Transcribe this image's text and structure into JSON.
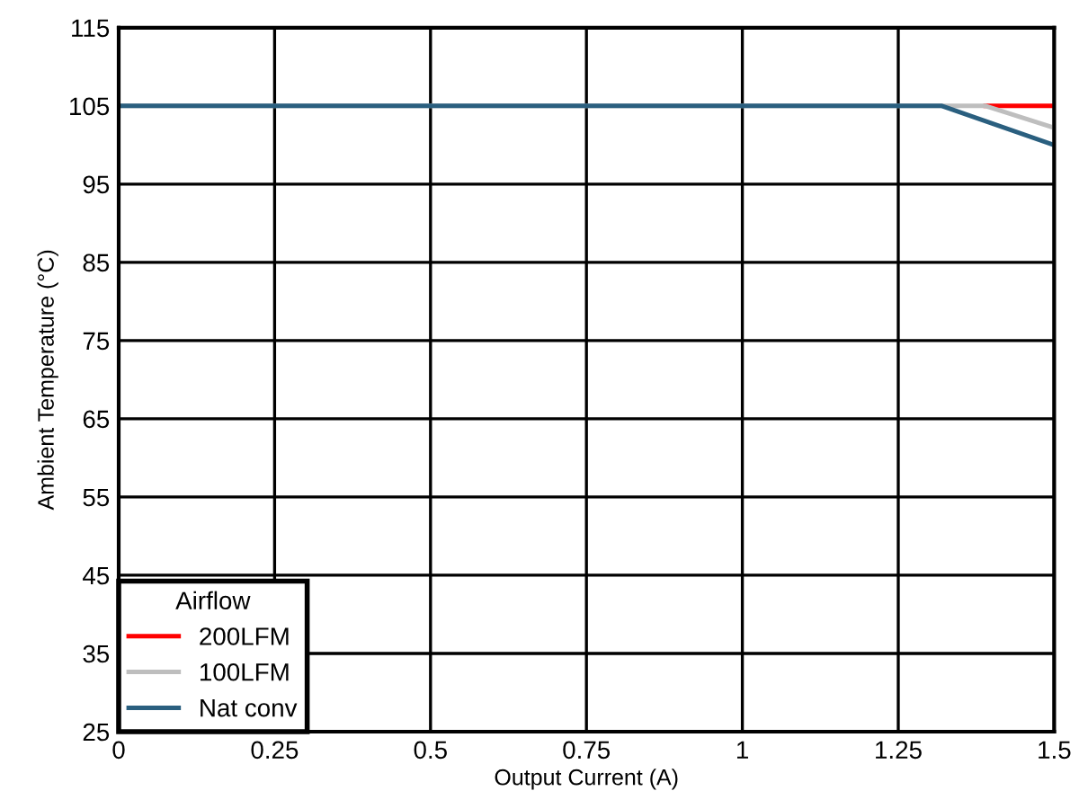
{
  "chart_data": {
    "type": "line",
    "xlabel": "Output Current (A)",
    "ylabel": "Ambient Temperature (°C)",
    "legend_title": "Airflow",
    "legend": "bottom left",
    "grid": true,
    "xlim": [
      0,
      1.5
    ],
    "xticks": [
      0,
      0.25,
      0.5,
      0.75,
      1,
      1.25,
      1.5
    ],
    "ylim": [
      25,
      115
    ],
    "yticks": [
      25,
      35,
      45,
      55,
      65,
      75,
      85,
      95,
      105,
      115
    ],
    "series": [
      {
        "name": "200LFM",
        "color": "#ff0000",
        "x": [
          1.39,
          1.5
        ],
        "values": [
          105,
          105
        ]
      },
      {
        "name": "100LFM",
        "color": "#bebebe",
        "x": [
          0,
          1.39,
          1.5
        ],
        "values": [
          105,
          105,
          102.2
        ]
      },
      {
        "name": "Nat conv",
        "color": "#2a5f7f",
        "x": [
          0,
          1.32,
          1.5
        ],
        "values": [
          105,
          105,
          100
        ]
      }
    ]
  }
}
